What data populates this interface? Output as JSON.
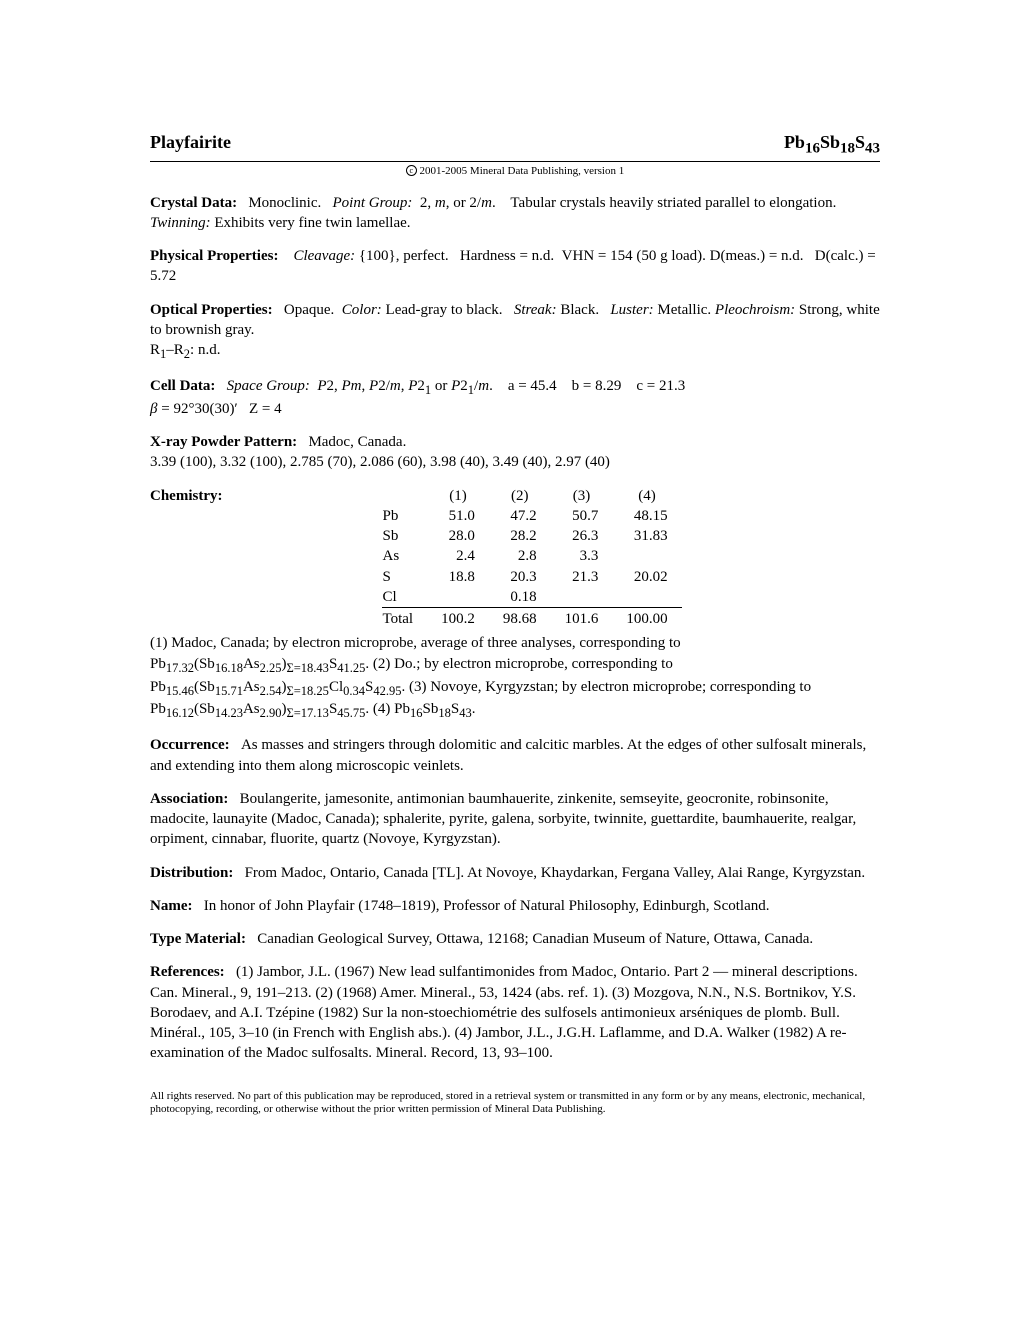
{
  "title_left": "Playfairite",
  "formula_html": "Pb<sub>16</sub>Sb<sub>18</sub>S<sub>43</sub>",
  "copyright": "2001-2005 Mineral Data Publishing, version 1",
  "crystal_data": {
    "label": "Crystal Data:",
    "text_html": "Monoclinic. &nbsp; <i>Point Group:</i> &nbsp;2, <i>m</i>, or 2/<i>m</i>. &nbsp;&nbsp; Tabular crystals heavily striated parallel to elongation. &nbsp; <i>Twinning:</i> Exhibits very fine twin lamellae."
  },
  "physical": {
    "label": "Physical Properties:",
    "text_html": "<i>Cleavage:</i> {100}, perfect. &nbsp; Hardness = n.d. &nbsp;VHN = 154 (50 g load). D(meas.) = n.d. &nbsp; D(calc.) = 5.72"
  },
  "optical": {
    "label": "Optical Properties:",
    "text_html": "Opaque. &nbsp;<i>Color:</i> Lead-gray to black. &nbsp; <i>Streak:</i> Black. &nbsp; <i>Luster:</i> Metallic. <i>Pleochroism:</i> Strong, white to brownish gray.",
    "line2_html": "R<sub>1</sub>–R<sub>2</sub>: n.d."
  },
  "cell": {
    "label": "Cell Data:",
    "text_html": "<i>Space Group:</i> &nbsp;<i>P</i>2, <i>Pm</i>, <i>P</i>2/<i>m</i>, <i>P</i>2<sub>1</sub> or <i>P</i>2<sub>1</sub>/<i>m</i>. &nbsp;&nbsp; a = 45.4 &nbsp;&nbsp; b = 8.29 &nbsp;&nbsp; c = 21.3 <br><i>β</i> = 92°30(30)′ &nbsp;&nbsp;Z = 4"
  },
  "xray": {
    "label": "X-ray Powder Pattern:",
    "loc": "Madoc, Canada.",
    "line": "3.39 (100), 3.32 (100), 2.785 (70), 2.086 (60), 3.98 (40), 3.49 (40), 2.97 (40)"
  },
  "chemistry": {
    "label": "Chemistry:",
    "headers": [
      "(1)",
      "(2)",
      "(3)",
      "(4)"
    ],
    "rows": [
      {
        "el": "Pb",
        "v": [
          "51.0",
          "47.2",
          "50.7",
          "48.15"
        ]
      },
      {
        "el": "Sb",
        "v": [
          "28.0",
          "28.2",
          "26.3",
          "31.83"
        ]
      },
      {
        "el": "As",
        "v": [
          "2.4",
          "2.8",
          "3.3",
          ""
        ]
      },
      {
        "el": "S",
        "v": [
          "18.8",
          "20.3",
          "21.3",
          "20.02"
        ]
      },
      {
        "el": "Cl",
        "v": [
          "",
          "0.18",
          "",
          ""
        ]
      }
    ],
    "total": {
      "el": "Total",
      "v": [
        "100.2",
        "98.68",
        "101.6",
        "100.00"
      ]
    },
    "notes_html": "(1) Madoc, Canada; by electron microprobe, average of three analyses, corresponding to Pb<sub>17.32</sub>(Sb<sub>16.18</sub>As<sub>2.25</sub>)<sub>Σ=18.43</sub>S<sub>41.25</sub>. (2) Do.; by electron microprobe, corresponding to Pb<sub>15.46</sub>(Sb<sub>15.71</sub>As<sub>2.54</sub>)<sub>Σ=18.25</sub>Cl<sub>0.34</sub>S<sub>42.95</sub>. (3) Novoye, Kyrgyzstan; by electron microprobe; corresponding to Pb<sub>16.12</sub>(Sb<sub>14.23</sub>As<sub>2.90</sub>)<sub>Σ=17.13</sub>S<sub>45.75</sub>. (4) Pb<sub>16</sub>Sb<sub>18</sub>S<sub>43</sub>."
  },
  "occurrence": {
    "label": "Occurrence:",
    "text": "As masses and stringers through dolomitic and calcitic marbles. At the edges of other sulfosalt minerals, and extending into them along microscopic veinlets."
  },
  "association": {
    "label": "Association:",
    "text": "Boulangerite, jamesonite, antimonian baumhauerite, zinkenite, semseyite, geocronite, robinsonite, madocite, launayite (Madoc, Canada); sphalerite, pyrite, galena, sorbyite, twinnite, guettardite, baumhauerite, realgar, orpiment, cinnabar, fluorite, quartz (Novoye, Kyrgyzstan)."
  },
  "distribution": {
    "label": "Distribution:",
    "text": "From Madoc, Ontario, Canada [TL]. At Novoye, Khaydarkan, Fergana Valley, Alai Range, Kyrgyzstan."
  },
  "name": {
    "label": "Name:",
    "text": "In honor of John Playfair (1748–1819), Professor of Natural Philosophy, Edinburgh, Scotland."
  },
  "type_material": {
    "label": "Type Material:",
    "text": "Canadian Geological Survey, Ottawa, 12168; Canadian Museum of Nature, Ottawa, Canada."
  },
  "references": {
    "label": "References:",
    "text": "(1) Jambor, J.L. (1967) New lead sulfantimonides from Madoc, Ontario. Part 2 — mineral descriptions. Can. Mineral., 9, 191–213. (2) (1968) Amer. Mineral., 53, 1424 (abs. ref. 1). (3) Mozgova, N.N., N.S. Bortnikov, Y.S. Borodaev, and A.I. Tzépine (1982) Sur la non-stoechiométrie des sulfosels antimonieux arséniques de plomb. Bull. Minéral., 105, 3–10 (in French with English abs.). (4) Jambor, J.L., J.G.H. Laflamme, and D.A. Walker (1982) A re-examination of the Madoc sulfosalts. Mineral. Record, 13, 93–100."
  },
  "footer": "All rights reserved. No part of this publication may be reproduced, stored in a retrieval system or transmitted in any form or by any means, electronic, mechanical, photocopying, recording, or otherwise without the prior written permission of Mineral Data Publishing."
}
